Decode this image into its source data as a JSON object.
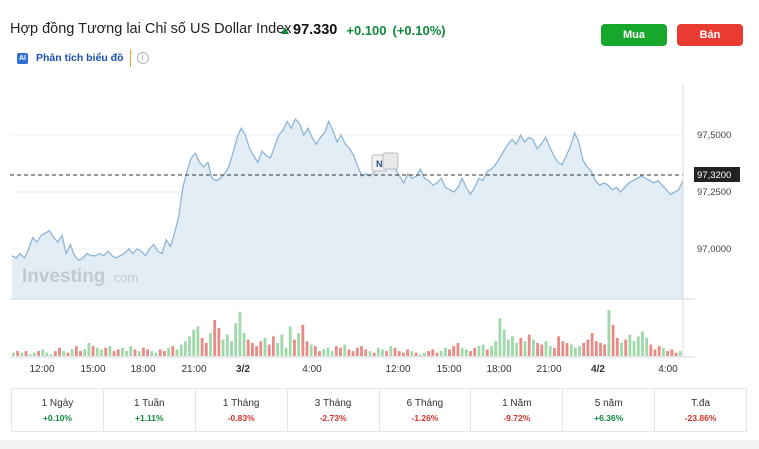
{
  "header": {
    "title": "Hợp đồng Tương lai Chỉ số US Dollar Index",
    "price": "97.330",
    "change": "+0.100",
    "change_pct": "(+0.10%)"
  },
  "actions": {
    "buy_label": "Mua",
    "sell_label": "Bán"
  },
  "analysis": {
    "badge": "AI",
    "label": "Phân tích biểu đồ"
  },
  "chart": {
    "watermark": "Investing",
    "watermark_suffix": ".com",
    "marker_label": "N",
    "current_value_label": "97,3200",
    "y_ticks": [
      "97,5000",
      "97,2500",
      "97,0000"
    ],
    "x_ticks": [
      "12:00",
      "15:00",
      "18:00",
      "21:00",
      "3/2",
      "4:00",
      "12:00",
      "15:00",
      "18:00",
      "21:00",
      "4/2",
      "4:00"
    ]
  },
  "chart_data": {
    "type": "area",
    "y_range": [
      96.78,
      97.72
    ],
    "current_value": 97.32,
    "y_tick_values": [
      97.5,
      97.25,
      97.0
    ],
    "price_series": [
      96.97,
      96.96,
      96.98,
      96.96,
      97.0,
      97.05,
      97.03,
      97.06,
      97.07,
      97.08,
      97.05,
      97.03,
      97.06,
      96.98,
      97.02,
      96.97,
      96.95,
      96.96,
      96.98,
      96.97,
      96.97,
      96.98,
      96.97,
      96.99,
      96.97,
      96.96,
      96.97,
      96.98,
      97.0,
      96.98,
      97.0,
      96.99,
      96.97,
      97.0,
      97.02,
      96.99,
      96.98,
      97.04,
      97.01,
      97.07,
      97.14,
      97.27,
      97.34,
      97.4,
      97.42,
      97.38,
      97.36,
      97.38,
      97.31,
      97.3,
      97.31,
      97.33,
      97.36,
      97.42,
      97.49,
      97.53,
      97.5,
      97.44,
      97.41,
      97.38,
      97.43,
      97.41,
      97.4,
      97.45,
      97.5,
      97.52,
      97.56,
      97.53,
      97.57,
      97.55,
      97.5,
      97.53,
      97.49,
      97.46,
      97.49,
      97.51,
      97.56,
      97.52,
      97.47,
      97.5,
      97.46,
      97.44,
      97.41,
      97.36,
      97.32,
      97.33,
      97.32,
      97.34,
      97.37,
      97.36,
      97.38,
      97.37,
      97.35,
      97.32,
      97.29,
      97.33,
      97.31,
      97.32,
      97.35,
      97.31,
      97.3,
      97.28,
      97.29,
      97.31,
      97.27,
      97.26,
      97.25,
      97.27,
      97.31,
      97.27,
      97.24,
      97.27,
      97.31,
      97.3,
      97.34,
      97.35,
      97.37,
      97.4,
      97.43,
      97.46,
      97.48,
      97.46,
      97.5,
      97.47,
      97.49,
      97.48,
      97.44,
      97.46,
      97.49,
      97.45,
      97.41,
      97.38,
      97.37,
      97.41,
      97.45,
      97.51,
      97.47,
      97.39,
      97.36,
      97.34,
      97.3,
      97.28,
      97.29,
      97.28,
      97.26,
      97.27,
      97.25,
      97.27,
      97.29,
      97.3,
      97.31,
      97.32,
      97.31,
      97.3,
      97.29,
      97.3,
      97.28,
      97.26,
      97.24,
      97.25,
      97.26,
      97.3
    ],
    "volume_series": [
      2,
      3,
      2,
      3,
      1,
      2,
      3,
      4,
      2,
      1,
      3,
      5,
      3,
      2,
      4,
      6,
      3,
      4,
      8,
      6,
      5,
      4,
      5,
      6,
      3,
      4,
      5,
      3,
      6,
      4,
      3,
      5,
      4,
      3,
      2,
      4,
      3,
      5,
      6,
      4,
      7,
      9,
      12,
      16,
      18,
      11,
      8,
      14,
      22,
      17,
      10,
      13,
      9,
      20,
      27,
      14,
      10,
      8,
      6,
      9,
      11,
      7,
      12,
      8,
      13,
      5,
      18,
      10,
      14,
      19,
      9,
      7,
      6,
      3,
      4,
      5,
      3,
      6,
      5,
      7,
      4,
      3,
      5,
      6,
      4,
      3,
      2,
      5,
      4,
      3,
      6,
      5,
      3,
      2,
      4,
      3,
      2,
      1,
      2,
      3,
      4,
      2,
      3,
      5,
      4,
      6,
      8,
      5,
      4,
      3,
      5,
      6,
      7,
      4,
      6,
      9,
      23,
      16,
      10,
      12,
      8,
      11,
      9,
      13,
      10,
      8,
      7,
      9,
      6,
      5,
      12,
      9,
      8,
      7,
      5,
      6,
      8,
      10,
      14,
      9,
      8,
      7,
      28,
      19,
      11,
      8,
      10,
      13,
      9,
      12,
      15,
      11,
      7,
      4,
      6,
      5,
      3,
      4,
      2,
      3
    ]
  },
  "periods": [
    {
      "label": "1 Ngày",
      "value": "+0.10%",
      "dir": "pos"
    },
    {
      "label": "1 Tuần",
      "value": "+1.11%",
      "dir": "pos"
    },
    {
      "label": "1 Tháng",
      "value": "-0.83%",
      "dir": "neg"
    },
    {
      "label": "3 Tháng",
      "value": "-2.73%",
      "dir": "neg"
    },
    {
      "label": "6 Tháng",
      "value": "-1.26%",
      "dir": "neg"
    },
    {
      "label": "1 Năm",
      "value": "-9.72%",
      "dir": "neg"
    },
    {
      "label": "5 năm",
      "value": "+6.36%",
      "dir": "pos"
    },
    {
      "label": "T.đa",
      "value": "-23.86%",
      "dir": "neg"
    }
  ]
}
